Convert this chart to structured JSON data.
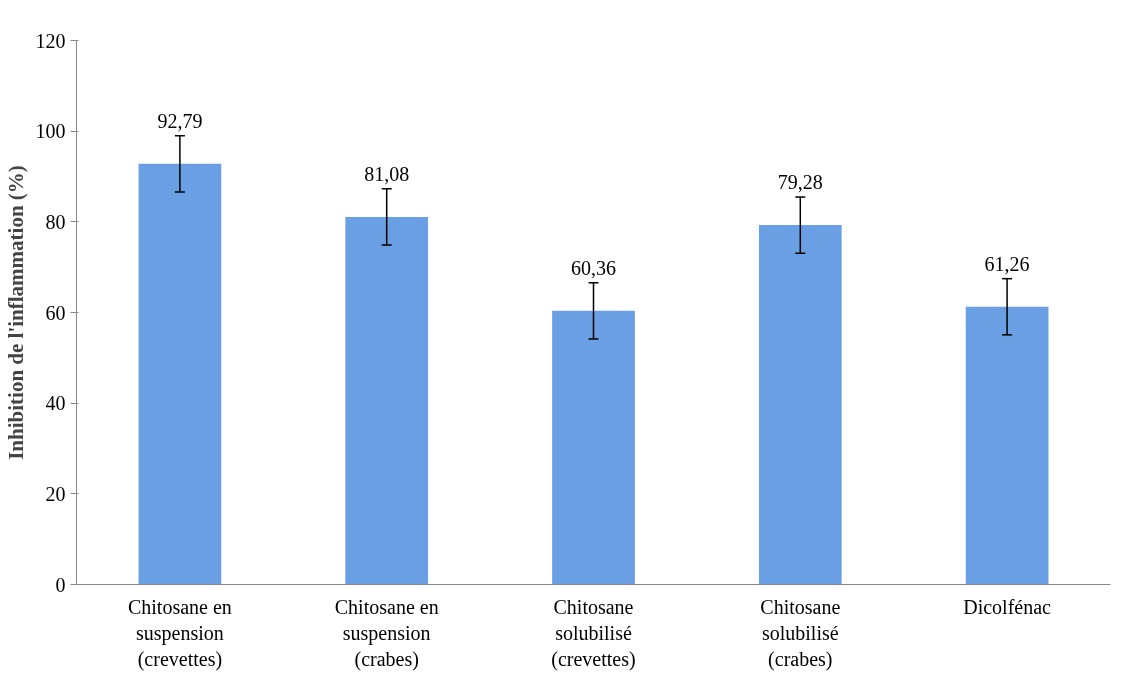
{
  "chart_data": {
    "type": "bar",
    "ylabel": "Inhibition de l'inflammation (%)",
    "categories": [
      "Chitosane en suspension (crevettes)",
      "Chitosane en suspension (crabes)",
      "Chitosane solubilisé (crevettes)",
      "Chitosane solubilisé (crabes)",
      "Dicolfénac"
    ],
    "values": [
      92.79,
      81.08,
      60.36,
      79.28,
      61.26
    ],
    "errors": [
      6.2,
      6.2,
      6.2,
      6.2,
      6.2
    ],
    "value_labels": [
      "92,79",
      "81,08",
      "60,36",
      "79,28",
      "61,26"
    ],
    "color": "#6a9fe3",
    "ylim": [
      0,
      120
    ],
    "yticks": [
      0,
      20,
      40,
      60,
      80,
      100,
      120
    ],
    "grid": false
  }
}
